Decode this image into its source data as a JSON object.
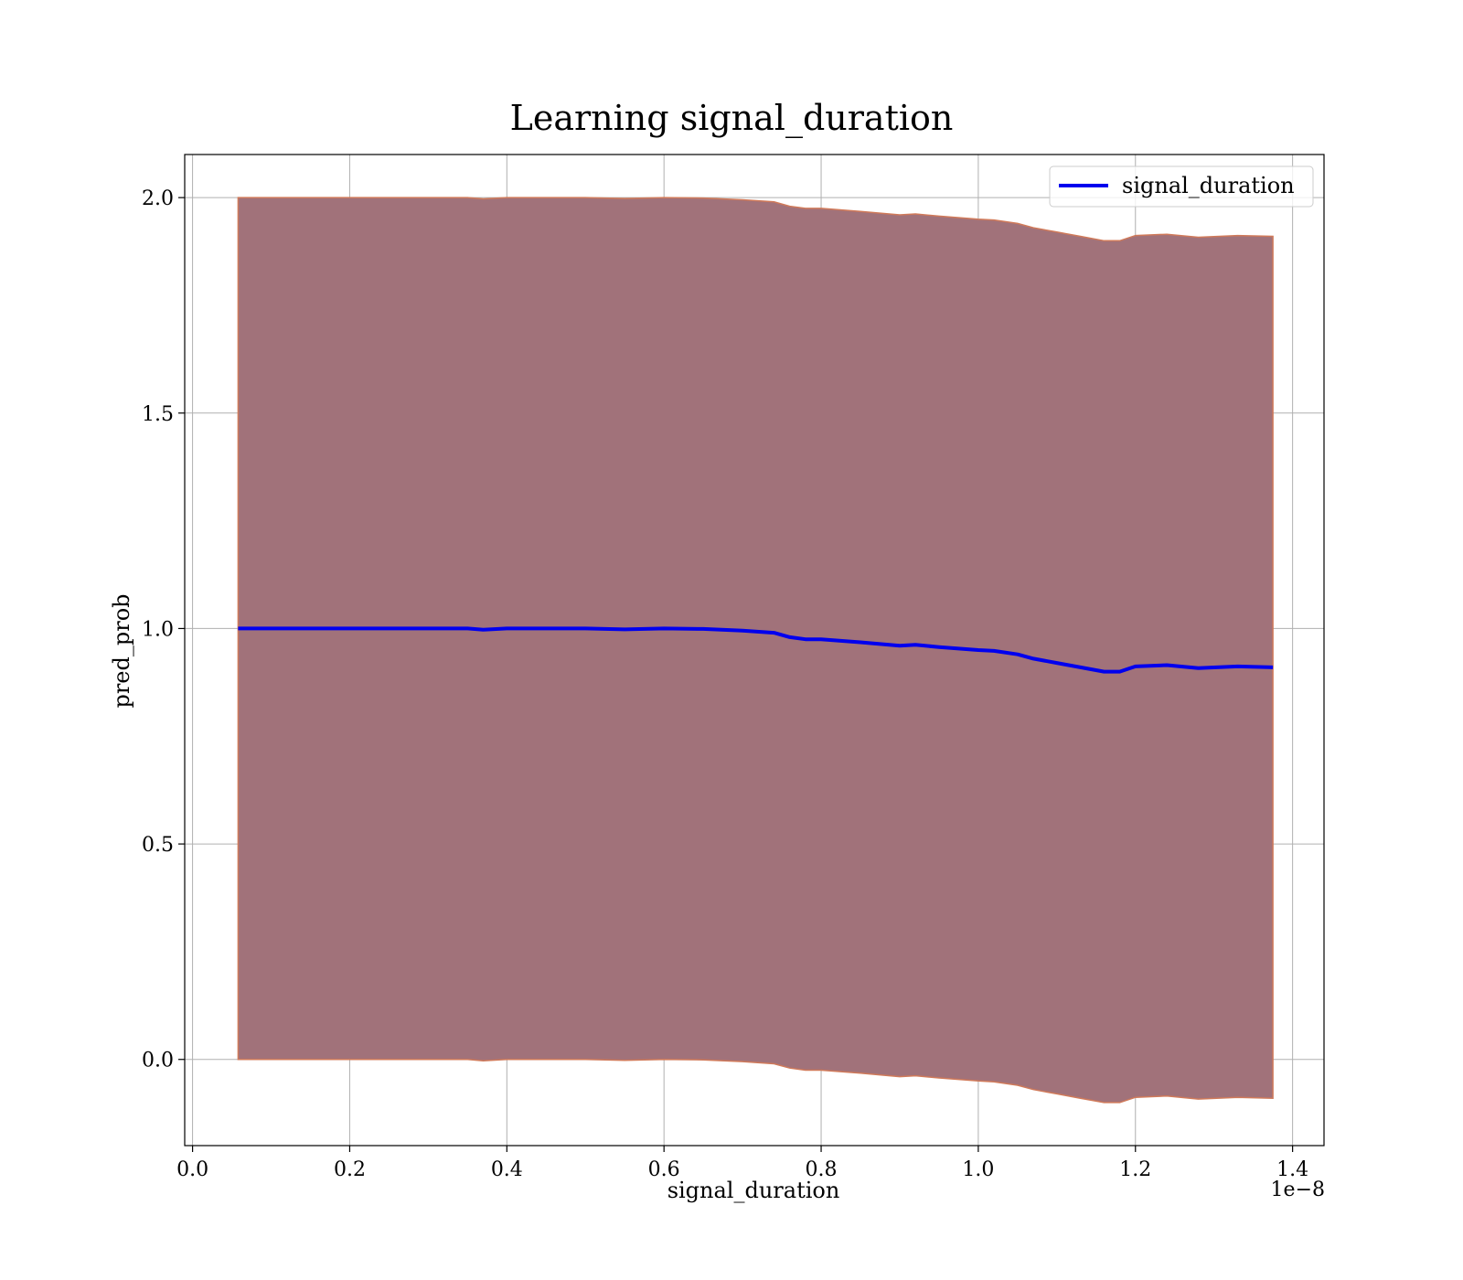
{
  "chart_data": {
    "type": "line",
    "title": "Learning signal_duration",
    "xlabel": "signal_duration",
    "ylabel": "pred_prob",
    "x_offset_label": "1e−8",
    "xlim": [
      -0.01,
      1.44
    ],
    "ylim": [
      -0.2,
      2.1
    ],
    "x_ticks": [
      0.0,
      0.2,
      0.4,
      0.6,
      0.8,
      1.0,
      1.2,
      1.4
    ],
    "x_tick_labels": [
      "0.0",
      "0.2",
      "0.4",
      "0.6",
      "0.8",
      "1.0",
      "1.2",
      "1.4"
    ],
    "y_ticks": [
      0.0,
      0.5,
      1.0,
      1.5,
      2.0
    ],
    "y_tick_labels": [
      "0.0",
      "0.5",
      "1.0",
      "1.5",
      "2.0"
    ],
    "grid": true,
    "legend_position": "top-right",
    "colors": {
      "line": "#0000ee",
      "band_fill": "#a1727a",
      "band_edge": "#d07a5a",
      "grid": "#b0b0b0"
    },
    "series": [
      {
        "name": "signal_duration",
        "x": [
          0.058,
          0.1,
          0.15,
          0.2,
          0.25,
          0.3,
          0.35,
          0.37,
          0.4,
          0.45,
          0.5,
          0.55,
          0.6,
          0.65,
          0.7,
          0.74,
          0.76,
          0.78,
          0.8,
          0.85,
          0.9,
          0.92,
          0.95,
          1.0,
          1.02,
          1.05,
          1.07,
          1.1,
          1.13,
          1.16,
          1.18,
          1.2,
          1.24,
          1.28,
          1.33,
          1.375
        ],
        "y": [
          1.0,
          1.0,
          1.0,
          1.0,
          1.0,
          1.0,
          1.0,
          0.997,
          1.0,
          1.0,
          1.0,
          0.998,
          1.0,
          0.999,
          0.995,
          0.99,
          0.98,
          0.975,
          0.975,
          0.968,
          0.96,
          0.962,
          0.957,
          0.95,
          0.948,
          0.94,
          0.93,
          0.92,
          0.91,
          0.9,
          0.9,
          0.912,
          0.915,
          0.908,
          0.912,
          0.91
        ]
      }
    ],
    "band": {
      "upper": [
        2.0,
        2.0,
        2.0,
        2.0,
        2.0,
        2.0,
        2.0,
        1.997,
        2.0,
        2.0,
        2.0,
        1.998,
        2.0,
        1.999,
        1.995,
        1.99,
        1.98,
        1.975,
        1.975,
        1.968,
        1.96,
        1.962,
        1.957,
        1.95,
        1.948,
        1.94,
        1.93,
        1.92,
        1.91,
        1.9,
        1.9,
        1.912,
        1.915,
        1.908,
        1.912,
        1.91
      ],
      "lower": [
        0.0,
        0.0,
        0.0,
        0.0,
        0.0,
        0.0,
        0.0,
        -0.003,
        0.0,
        0.0,
        0.0,
        -0.002,
        0.0,
        -0.001,
        -0.005,
        -0.01,
        -0.02,
        -0.025,
        -0.025,
        -0.032,
        -0.04,
        -0.038,
        -0.043,
        -0.05,
        -0.052,
        -0.06,
        -0.07,
        -0.08,
        -0.09,
        -0.1,
        -0.1,
        -0.088,
        -0.085,
        -0.092,
        -0.088,
        -0.09
      ]
    }
  }
}
